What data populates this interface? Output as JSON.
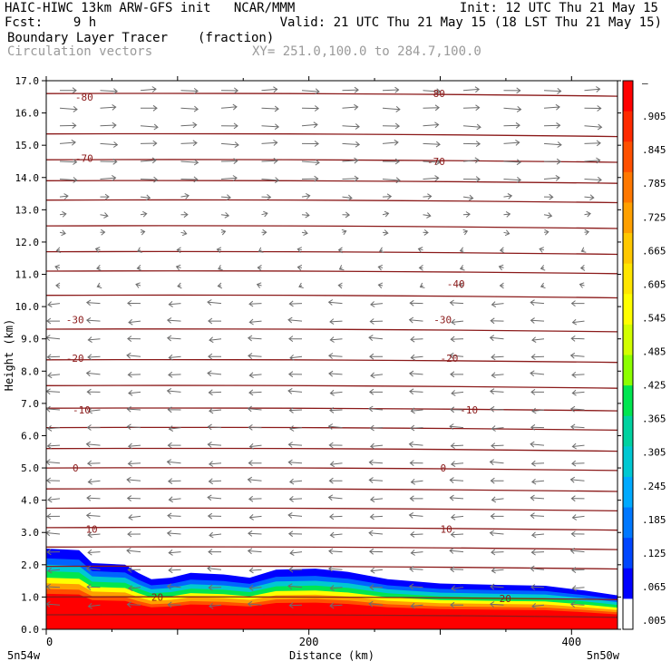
{
  "header": {
    "line1_left": "HAIC-HIWC 13km ARW-GFS init   NCAR/MMM",
    "line1_right": "Init: 12 UTC Thu 21 May 15",
    "line2_left": "Fcst:    9 h",
    "line2_right": "Valid: 21 UTC Thu 21 May 15 (18 LST Thu 21 May 15)",
    "line3_left": "Boundary Layer Tracer",
    "line3_units": "(fraction)",
    "line4_left": "Circulation vectors",
    "line4_right": "XY= 251.0,100.0 to 284.7,100.0"
  },
  "chart_data": {
    "type": "heatmap",
    "xlabel": "Distance (km)",
    "ylabel": "Height (km)",
    "xlim": [
      0,
      435
    ],
    "ylim": [
      0,
      17
    ],
    "x_ticks": [
      "0",
      "200",
      "400"
    ],
    "x_tick_values": [
      0,
      200,
      400
    ],
    "x_end_labels": [
      "5n54w",
      "5n50w"
    ],
    "y_ticks": [
      "0.0",
      "1.0",
      "2.0",
      "3.0",
      "4.0",
      "5.0",
      "6.0",
      "7.0",
      "8.0",
      "9.0",
      "10.0",
      "11.0",
      "12.0",
      "13.0",
      "14.0",
      "15.0",
      "16.0",
      "17.0"
    ],
    "tracer_top_km": [
      [
        0,
        2.5
      ],
      [
        25,
        2.45
      ],
      [
        35,
        2.05
      ],
      [
        60,
        2.0
      ],
      [
        70,
        1.75
      ],
      [
        80,
        1.55
      ],
      [
        95,
        1.6
      ],
      [
        110,
        1.75
      ],
      [
        135,
        1.7
      ],
      [
        155,
        1.6
      ],
      [
        175,
        1.85
      ],
      [
        205,
        1.88
      ],
      [
        230,
        1.78
      ],
      [
        260,
        1.55
      ],
      [
        300,
        1.42
      ],
      [
        340,
        1.38
      ],
      [
        380,
        1.35
      ],
      [
        410,
        1.2
      ],
      [
        435,
        1.05
      ]
    ],
    "temperature_contours": [
      {
        "label": "-80",
        "label_positions": [
          [
            22,
            16.5
          ],
          [
            290,
            16.6
          ]
        ]
      },
      {
        "label": "-70",
        "label_positions": [
          [
            22,
            14.6
          ],
          [
            290,
            14.5
          ]
        ]
      },
      {
        "label": "-40",
        "label_positions": [
          [
            305,
            10.7
          ]
        ]
      },
      {
        "label": "-30",
        "label_positions": [
          [
            15,
            9.6
          ],
          [
            295,
            9.6
          ]
        ]
      },
      {
        "label": "-20",
        "label_positions": [
          [
            15,
            8.4
          ],
          [
            300,
            8.4
          ]
        ]
      },
      {
        "label": "-10",
        "label_positions": [
          [
            20,
            6.8
          ],
          [
            315,
            6.8
          ]
        ]
      },
      {
        "label": "0",
        "label_positions": [
          [
            20,
            5.0
          ],
          [
            300,
            5.0
          ]
        ]
      },
      {
        "label": "10",
        "label_positions": [
          [
            30,
            3.1
          ],
          [
            300,
            3.1
          ]
        ]
      },
      {
        "label": "20",
        "label_positions": [
          [
            80,
            1.0
          ],
          [
            345,
            0.95
          ]
        ]
      }
    ],
    "temperature_contour_heights_km": [
      0.45,
      1.0,
      1.95,
      2.55,
      3.15,
      3.75,
      4.35,
      5.0,
      5.6,
      6.25,
      6.85,
      7.55,
      8.35,
      9.3,
      10.35,
      11.1,
      11.7,
      12.5,
      13.3,
      13.9,
      14.55,
      15.35,
      16.6
    ],
    "colorbar": {
      "labels": [
        "–",
        ".905",
        ".845",
        ".785",
        ".725",
        ".665",
        ".605",
        ".545",
        ".485",
        ".425",
        ".365",
        ".305",
        ".245",
        ".185",
        ".125",
        ".065",
        ".005"
      ],
      "colors": [
        "#ff0000",
        "#ff2a00",
        "#ff5000",
        "#ff7800",
        "#ffa000",
        "#ffc800",
        "#ffe600",
        "#ffff00",
        "#d2ff00",
        "#8cff00",
        "#00e650",
        "#00d2a0",
        "#00c8d2",
        "#00aaff",
        "#0078ff",
        "#0046ff",
        "#0000ff",
        "#ffffff"
      ]
    },
    "wind_vectors": "upper layers eastward, middle and lower layers westward"
  }
}
